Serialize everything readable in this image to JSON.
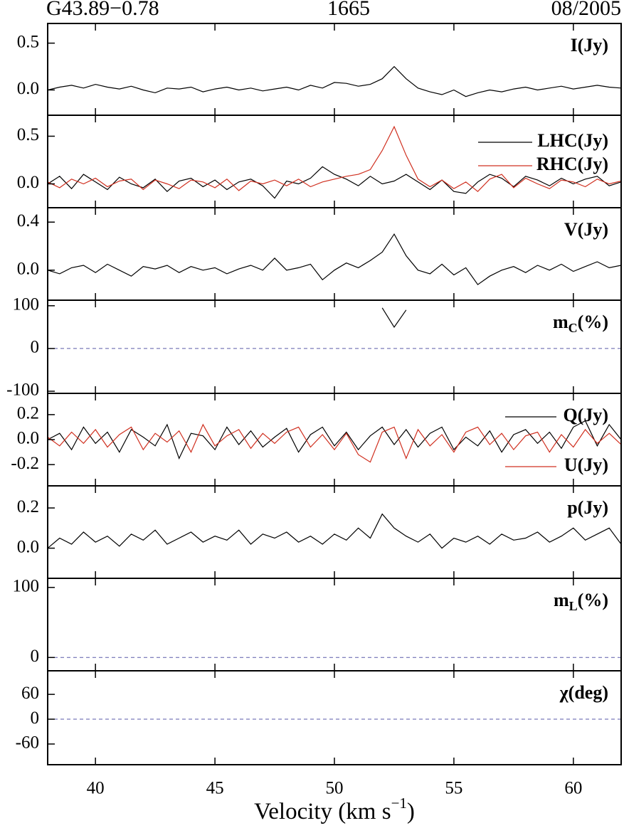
{
  "header": {
    "source": "G43.89−0.78",
    "frequency": "1665",
    "epoch": "08/2005"
  },
  "xlabel": [
    "Velocity (km s",
    "−1",
    ")"
  ],
  "xlim": [
    38,
    62
  ],
  "xticks": [
    40,
    45,
    50,
    55,
    60
  ],
  "x": [
    38,
    38.5,
    39,
    39.5,
    40,
    40.5,
    41,
    41.5,
    42,
    42.5,
    43,
    43.5,
    44,
    44.5,
    45,
    45.5,
    46,
    46.5,
    47,
    47.5,
    48,
    48.5,
    49,
    49.5,
    50,
    50.5,
    51,
    51.5,
    52,
    52.5,
    53,
    53.5,
    54,
    54.5,
    55,
    55.5,
    56,
    56.5,
    57,
    57.5,
    58,
    58.5,
    59,
    59.5,
    60,
    60.5,
    61,
    61.5,
    62
  ],
  "chart_data": [
    {
      "type": "line",
      "label": [
        "I(Jy)"
      ],
      "ylim": [
        -0.27,
        0.71
      ],
      "yticks": [
        {
          "value": 0,
          "label": "0.0"
        },
        0.5
      ],
      "series": [
        {
          "color": "#000000",
          "values": [
            0.0,
            0.03,
            0.05,
            0.02,
            0.06,
            0.03,
            0.01,
            0.04,
            0.0,
            -0.03,
            0.02,
            0.01,
            0.03,
            -0.02,
            0.01,
            0.03,
            0.0,
            0.02,
            -0.01,
            0.01,
            0.03,
            0.0,
            0.05,
            0.02,
            0.08,
            0.07,
            0.04,
            0.06,
            0.12,
            0.25,
            0.12,
            0.02,
            -0.02,
            -0.05,
            0.0,
            -0.07,
            -0.03,
            0.0,
            -0.02,
            0.01,
            0.03,
            0.0,
            0.02,
            0.04,
            0.01,
            0.03,
            0.05,
            0.03,
            0.02
          ]
        }
      ]
    },
    {
      "type": "line",
      "legend": "upper right",
      "ylim": [
        -0.25,
        0.72
      ],
      "yticks": [
        {
          "value": 0,
          "label": "0.0"
        },
        0.5
      ],
      "series": [
        {
          "name": "LHC(Jy)",
          "color": "#000000",
          "values": [
            0.0,
            0.08,
            -0.05,
            0.1,
            0.02,
            -0.06,
            0.07,
            0.0,
            -0.04,
            0.05,
            -0.08,
            0.03,
            0.06,
            -0.03,
            0.04,
            -0.06,
            0.02,
            0.05,
            -0.02,
            -0.15,
            0.03,
            0.0,
            0.06,
            0.18,
            0.1,
            0.05,
            -0.02,
            0.08,
            0.0,
            0.03,
            0.1,
            0.02,
            -0.06,
            0.04,
            -0.08,
            -0.1,
            0.02,
            0.1,
            0.06,
            -0.03,
            0.08,
            0.04,
            -0.02,
            0.06,
            0.0,
            0.05,
            0.08,
            -0.02,
            0.02
          ]
        },
        {
          "name": "RHC(Jy)",
          "color": "#d03020",
          "values": [
            0.02,
            -0.04,
            0.05,
            0.0,
            0.06,
            -0.03,
            0.03,
            0.05,
            -0.06,
            0.04,
            0.0,
            -0.05,
            0.04,
            0.02,
            -0.04,
            0.05,
            -0.07,
            0.03,
            0.0,
            0.04,
            -0.02,
            0.05,
            -0.03,
            0.02,
            0.05,
            0.08,
            0.1,
            0.15,
            0.35,
            0.6,
            0.3,
            0.05,
            -0.03,
            0.04,
            -0.05,
            0.02,
            -0.08,
            0.05,
            0.1,
            -0.04,
            0.06,
            0.0,
            -0.05,
            0.04,
            0.02,
            -0.03,
            0.05,
            0.0,
            0.03
          ]
        }
      ]
    },
    {
      "type": "line",
      "label": [
        "V(Jy)"
      ],
      "ylim": [
        -0.25,
        0.52
      ],
      "yticks": [
        {
          "value": 0,
          "label": "0.0"
        },
        0.4
      ],
      "series": [
        {
          "color": "#000000",
          "values": [
            0.0,
            -0.03,
            0.02,
            0.04,
            -0.02,
            0.05,
            0.0,
            -0.05,
            0.03,
            0.01,
            0.04,
            -0.02,
            0.03,
            0.0,
            0.02,
            -0.03,
            0.01,
            0.04,
            0.0,
            0.1,
            0.0,
            0.02,
            0.05,
            -0.08,
            0.0,
            0.06,
            0.02,
            0.08,
            0.15,
            0.3,
            0.12,
            0.0,
            -0.03,
            0.05,
            -0.04,
            0.02,
            -0.12,
            -0.05,
            0.0,
            0.03,
            -0.02,
            0.04,
            0.0,
            0.05,
            -0.01,
            0.03,
            0.07,
            0.02,
            0.04
          ]
        }
      ]
    },
    {
      "type": "line",
      "label": [
        "m",
        "C",
        "(%)"
      ],
      "ylim": [
        -105,
        113
      ],
      "yticks": [
        -100,
        0,
        100
      ],
      "hline": 0,
      "series": [
        {
          "color": "#000000",
          "values": [
            null,
            null,
            null,
            null,
            null,
            null,
            null,
            null,
            null,
            null,
            null,
            null,
            null,
            null,
            null,
            null,
            null,
            null,
            null,
            null,
            null,
            null,
            null,
            null,
            null,
            null,
            null,
            null,
            95,
            50,
            90,
            null,
            null,
            null,
            null,
            null,
            null,
            null,
            null,
            null,
            null,
            null,
            null,
            null,
            null,
            null,
            null,
            null,
            null
          ]
        }
      ]
    },
    {
      "type": "line",
      "legend": "top-bottom",
      "ylim": [
        -0.37,
        0.37
      ],
      "yticks": [
        {
          "value": -0.2,
          "label": "-0.2"
        },
        {
          "value": 0,
          "label": "0.0"
        },
        0.2
      ],
      "series": [
        {
          "name": "Q(Jy)",
          "color": "#000000",
          "values": [
            0.0,
            0.05,
            -0.08,
            0.1,
            -0.03,
            0.06,
            -0.1,
            0.08,
            0.02,
            -0.05,
            0.12,
            -0.15,
            0.05,
            0.03,
            -0.08,
            0.1,
            -0.04,
            0.07,
            -0.06,
            0.02,
            0.09,
            -0.1,
            0.04,
            0.1,
            -0.05,
            0.06,
            -0.08,
            0.03,
            0.1,
            -0.04,
            0.08,
            -0.06,
            0.05,
            0.1,
            -0.08,
            0.02,
            -0.05,
            0.07,
            -0.1,
            0.04,
            0.08,
            -0.03,
            0.06,
            -0.07,
            0.1,
            0.15,
            -0.05,
            0.12,
            0.0
          ]
        },
        {
          "name": "U(Jy)",
          "color": "#d03020",
          "values": [
            0.02,
            -0.05,
            0.06,
            -0.03,
            0.08,
            -0.06,
            0.04,
            0.1,
            -0.08,
            0.05,
            -0.02,
            0.07,
            -0.1,
            0.12,
            -0.05,
            0.03,
            0.08,
            -0.07,
            0.05,
            -0.03,
            0.06,
            0.1,
            -0.06,
            0.04,
            -0.08,
            0.05,
            -0.12,
            -0.18,
            0.06,
            0.1,
            -0.15,
            0.08,
            -0.05,
            0.04,
            -0.1,
            0.06,
            0.1,
            -0.04,
            0.05,
            -0.08,
            0.03,
            0.06,
            -0.1,
            0.04,
            -0.06,
            0.08,
            -0.03,
            0.05,
            -0.04
          ]
        }
      ]
    },
    {
      "type": "line",
      "label": [
        "p(Jy)"
      ],
      "ylim": [
        -0.15,
        0.31
      ],
      "yticks": [
        {
          "value": 0,
          "label": "0.0"
        },
        0.2
      ],
      "series": [
        {
          "color": "#000000",
          "values": [
            0.0,
            0.05,
            0.02,
            0.08,
            0.03,
            0.06,
            0.01,
            0.07,
            0.04,
            0.09,
            0.02,
            0.05,
            0.08,
            0.03,
            0.06,
            0.04,
            0.09,
            0.02,
            0.07,
            0.05,
            0.08,
            0.03,
            0.06,
            0.02,
            0.07,
            0.04,
            0.1,
            0.05,
            0.17,
            0.1,
            0.06,
            0.03,
            0.07,
            0.0,
            0.05,
            0.03,
            0.06,
            0.02,
            0.07,
            0.04,
            0.05,
            0.08,
            0.03,
            0.06,
            0.1,
            0.04,
            0.07,
            0.1,
            0.02
          ]
        }
      ]
    },
    {
      "type": "line",
      "label": [
        "m",
        "L",
        "(%)"
      ],
      "ylim": [
        -19,
        113
      ],
      "yticks": [
        0,
        100
      ],
      "hline": 0,
      "series": []
    },
    {
      "type": "line",
      "label": [
        "χ(deg)"
      ],
      "ylim": [
        -110,
        117
      ],
      "yticks": [
        -60,
        0,
        60
      ],
      "hline": 0,
      "series": []
    }
  ]
}
